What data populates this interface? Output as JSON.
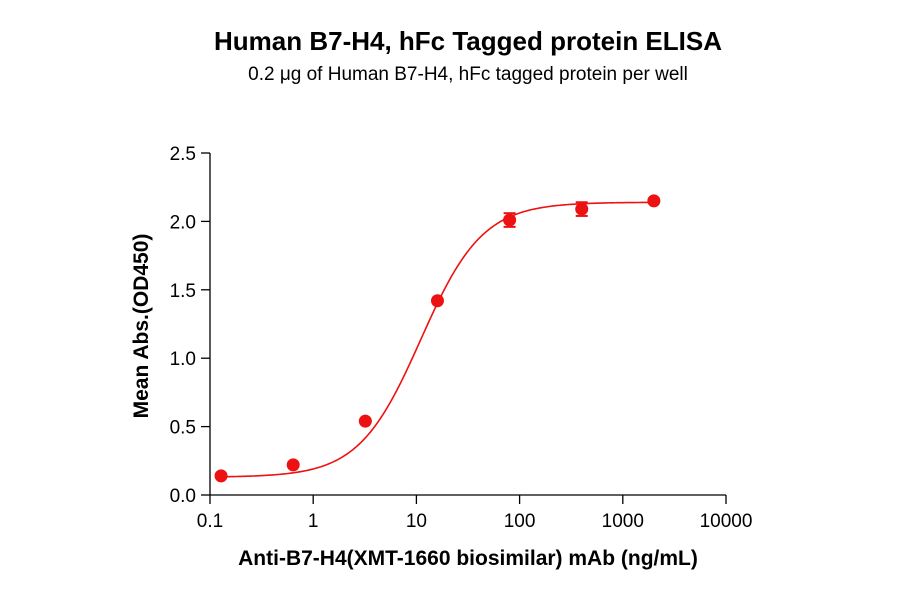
{
  "chart_data": {
    "type": "scatter",
    "title": "Human B7-H4, hFc Tagged protein ELISA",
    "subtitle": "0.2 μg of Human B7-H4, hFc tagged protein per well",
    "xlabel": "Anti-B7-H4(XMT-1660 biosimilar) mAb (ng/mL)",
    "ylabel": "Mean Abs.(OD450)",
    "x_scale": "log",
    "xlim": [
      0.1,
      10000
    ],
    "ylim": [
      0,
      2.5
    ],
    "x_ticks": [
      "0.1",
      "1",
      "10",
      "100",
      "1000",
      "10000"
    ],
    "y_ticks": [
      "0.0",
      "0.5",
      "1.0",
      "1.5",
      "2.0",
      "2.5"
    ],
    "grid": false,
    "series": [
      {
        "color": "#ee1111",
        "x": [
          0.128,
          0.64,
          3.2,
          16,
          80,
          400,
          2000
        ],
        "y": [
          0.14,
          0.22,
          0.54,
          1.42,
          2.01,
          2.09,
          2.15
        ],
        "error": [
          0.01,
          0.01,
          0.01,
          0.01,
          0.05,
          0.05,
          0.01
        ],
        "fit": "4PL sigmoidal curve"
      }
    ]
  }
}
